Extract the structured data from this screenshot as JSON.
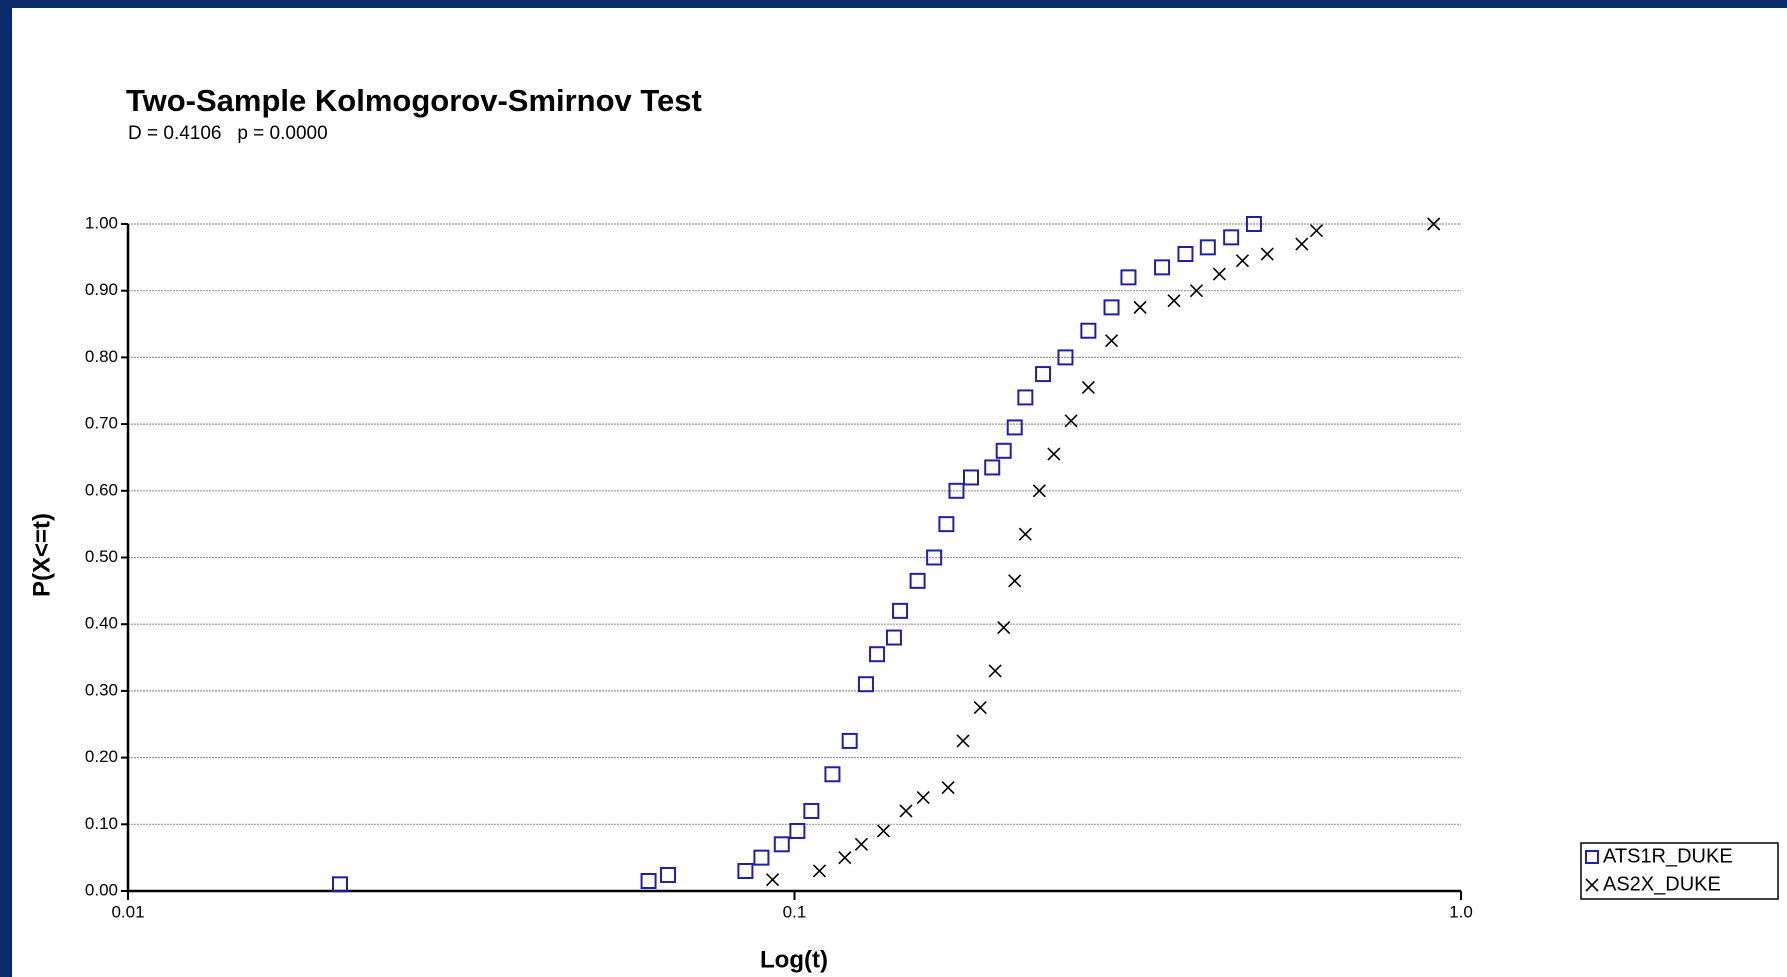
{
  "chart_data": {
    "type": "scatter",
    "title": "Two-Sample Kolmogorov-Smirnov Test",
    "subtitle": "D = 0.4106   p = 0.0000",
    "x_label": "Log(t)",
    "y_label": "P(X<=t)",
    "xscale": "log",
    "xlim": [
      0.01,
      1.0
    ],
    "xticks": [
      0.01,
      0.1,
      {
        "value": 1.0,
        "label": "1.0"
      }
    ],
    "ylim": [
      0,
      1
    ],
    "yticks": [
      {
        "value": 0,
        "label": "0.00"
      },
      {
        "value": 0.1,
        "label": "0.10"
      },
      {
        "value": 0.2,
        "label": "0.20"
      },
      {
        "value": 0.3,
        "label": "0.30"
      },
      {
        "value": 0.4,
        "label": "0.40"
      },
      {
        "value": 0.5,
        "label": "0.50"
      },
      {
        "value": 0.6,
        "label": "0.60"
      },
      {
        "value": 0.7,
        "label": "0.70"
      },
      {
        "value": 0.8,
        "label": "0.80"
      },
      {
        "value": 0.9,
        "label": "0.90"
      },
      {
        "value": 1.0,
        "label": "1.00"
      }
    ],
    "grid": true,
    "legend": "outside-right-bottom",
    "series": [
      {
        "name": "ATS1R_DUKE",
        "color": "#1f1fa8",
        "marker": "square",
        "x": [
          0.0208,
          0.0604,
          0.0646,
          0.0844,
          0.0892,
          0.0957,
          0.101,
          0.106,
          0.114,
          0.121,
          0.128,
          0.133,
          0.141,
          0.144,
          0.153,
          0.162,
          0.169,
          0.175,
          0.184,
          0.198,
          0.206,
          0.214,
          0.222,
          0.236,
          0.255,
          0.276,
          0.299,
          0.317,
          0.356,
          0.386,
          0.417,
          0.452,
          0.489
        ],
        "values": [
          0.01,
          0.015,
          0.024,
          0.03,
          0.05,
          0.07,
          0.09,
          0.12,
          0.175,
          0.225,
          0.31,
          0.355,
          0.38,
          0.42,
          0.465,
          0.5,
          0.55,
          0.6,
          0.62,
          0.635,
          0.66,
          0.695,
          0.74,
          0.775,
          0.8,
          0.84,
          0.875,
          0.92,
          0.935,
          0.955,
          0.965,
          0.98,
          1.0
        ]
      },
      {
        "name": "AS2X_DUKE",
        "color": "#000000",
        "marker": "x",
        "x": [
          0.0927,
          0.109,
          0.119,
          0.126,
          0.136,
          0.147,
          0.156,
          0.17,
          0.179,
          0.19,
          0.2,
          0.206,
          0.214,
          0.222,
          0.233,
          0.245,
          0.26,
          0.276,
          0.299,
          0.33,
          0.371,
          0.401,
          0.434,
          0.47,
          0.512,
          0.577,
          0.607,
          0.91
        ],
        "values": [
          0.017,
          0.03,
          0.05,
          0.07,
          0.09,
          0.12,
          0.14,
          0.155,
          0.225,
          0.275,
          0.33,
          0.395,
          0.465,
          0.535,
          0.6,
          0.655,
          0.705,
          0.755,
          0.825,
          0.875,
          0.885,
          0.9,
          0.925,
          0.945,
          0.955,
          0.97,
          0.99,
          1.0
        ]
      }
    ]
  }
}
